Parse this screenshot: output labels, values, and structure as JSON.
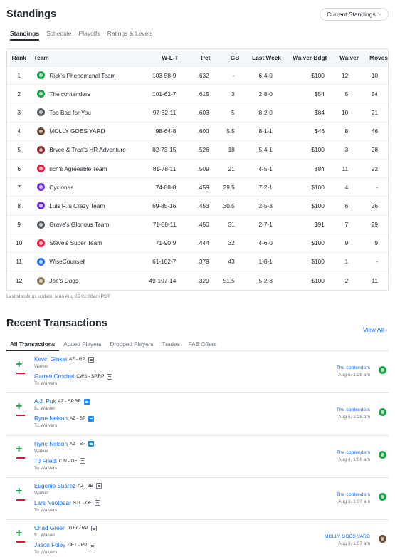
{
  "standings": {
    "title": "Standings",
    "season_button": "Current Standings",
    "subtabs": [
      "Standings",
      "Schedule",
      "Playoffs",
      "Ratings & Levels"
    ],
    "columns": [
      "Rank",
      "Team",
      "W-L-T",
      "Pct",
      "GB",
      "Last Week",
      "Waiver Bdgt",
      "Waiver",
      "Moves"
    ],
    "rows": [
      {
        "rank": "1",
        "team": "Rick's Phenomenal Team",
        "wlt": "103-58-9",
        "pct": ".632",
        "gb": "-",
        "last": "6-4-0",
        "bdgt": "$100",
        "waiver": "12",
        "moves": "10",
        "logo": "#1ea24b"
      },
      {
        "rank": "2",
        "team": "The contenders",
        "wlt": "101-62-7",
        "pct": ".615",
        "gb": "3",
        "last": "2-8-0",
        "bdgt": "$54",
        "waiver": "5",
        "moves": "54",
        "logo": "#1ea24b"
      },
      {
        "rank": "3",
        "team": "Too Bad for You",
        "wlt": "97-62-11",
        "pct": ".603",
        "gb": "5",
        "last": "8-2-0",
        "bdgt": "$84",
        "waiver": "10",
        "moves": "21",
        "logo": "#555b61"
      },
      {
        "rank": "4",
        "team": "MOLLY GOES YARD",
        "wlt": "98-64-8",
        "pct": ".600",
        "gb": "5.5",
        "last": "8-1-1",
        "bdgt": "$46",
        "waiver": "8",
        "moves": "46",
        "logo": "#6b4a33"
      },
      {
        "rank": "5",
        "team": "Bryce & Trea's HR Adventure",
        "wlt": "82-73-15",
        "pct": ".526",
        "gb": "18",
        "last": "5-4-1",
        "bdgt": "$100",
        "waiver": "3",
        "moves": "28",
        "logo": "#8c2b2b"
      },
      {
        "rank": "6",
        "team": "rich's Agreeable Team",
        "wlt": "81-78-11",
        "pct": ".509",
        "gb": "21",
        "last": "4-5-1",
        "bdgt": "$84",
        "waiver": "11",
        "moves": "22",
        "logo": "#e0244b"
      },
      {
        "rank": "7",
        "team": "Cyclones",
        "wlt": "74-88-8",
        "pct": ".459",
        "gb": "29.5",
        "last": "7-2-1",
        "bdgt": "$100",
        "waiver": "4",
        "moves": "-",
        "logo": "#6e34d6"
      },
      {
        "rank": "8",
        "team": "Luis R.'s Crazy Team",
        "wlt": "69-85-16",
        "pct": ".453",
        "gb": "30.5",
        "last": "2-5-3",
        "bdgt": "$100",
        "waiver": "6",
        "moves": "26",
        "logo": "#6e34d6"
      },
      {
        "rank": "9",
        "team": "Grave's Glorious Team",
        "wlt": "71-88-11",
        "pct": ".450",
        "gb": "31",
        "last": "2-7-1",
        "bdgt": "$91",
        "waiver": "7",
        "moves": "29",
        "logo": "#555b61"
      },
      {
        "rank": "10",
        "team": "Steve's Super Team",
        "wlt": "71-90-9",
        "pct": ".444",
        "gb": "32",
        "last": "4-6-0",
        "bdgt": "$100",
        "waiver": "9",
        "moves": "9",
        "logo": "#e0244b"
      },
      {
        "rank": "11",
        "team": "WiseCounsell",
        "wlt": "61-102-7",
        "pct": ".379",
        "gb": "43",
        "last": "1-8-1",
        "bdgt": "$100",
        "waiver": "1",
        "moves": "-",
        "logo": "#2a6fd6"
      },
      {
        "rank": "12",
        "team": "Joe's Dogs",
        "wlt": "49-107-14",
        "pct": ".329",
        "gb": "51.5",
        "last": "5-2-3",
        "bdgt": "$100",
        "waiver": "2",
        "moves": "11",
        "logo": "#8a7a55"
      }
    ],
    "updated": "Last standings update: Mon Aug 05 01:08am PDT"
  },
  "transactions": {
    "title": "Recent Transactions",
    "view_all": "View All",
    "tabs": [
      "All Transactions",
      "Added Players",
      "Dropped Players",
      "Trades",
      "FAB Offers"
    ],
    "items": [
      {
        "add_name": "Kevin Ginkel",
        "add_pos": "AZ - RP",
        "add_note_blue": false,
        "add_meta": "Waiver",
        "drop_name": "Garrett Crochet",
        "drop_pos": "CWS - SP,RP",
        "drop_note_blue": false,
        "drop_meta": "To Waivers",
        "team": "The contenders",
        "date": "Aug 5, 1:28 am",
        "logo": "#1ea24b"
      },
      {
        "add_name": "A.J. Puk",
        "add_pos": "AZ - SP,RP",
        "add_note_blue": true,
        "add_meta": "$1 Waiver",
        "drop_name": "Ryne Nelson",
        "drop_pos": "AZ - SP",
        "drop_note_blue": true,
        "drop_meta": "To Waivers",
        "team": "The contenders",
        "date": "Aug 5, 1:28 am",
        "logo": "#1ea24b"
      },
      {
        "add_name": "Ryne Nelson",
        "add_pos": "AZ - SP",
        "add_note_blue": true,
        "add_meta": "Waiver",
        "drop_name": "TJ Friedl",
        "drop_pos": "CIN - OF",
        "drop_note_blue": false,
        "drop_meta": "To Waivers",
        "team": "The contenders",
        "date": "Aug 4, 1:08 am",
        "logo": "#1ea24b"
      },
      {
        "add_name": "Eugenio Suárez",
        "add_pos": "AZ - 3B",
        "add_note_blue": false,
        "add_meta": "Waiver",
        "drop_name": "Lars Nootbaar",
        "drop_pos": "STL - OF",
        "drop_note_blue": false,
        "drop_meta": "To Waivers",
        "team": "The contenders",
        "date": "Aug 3, 1:07 am",
        "logo": "#1ea24b"
      },
      {
        "add_name": "Chad Green",
        "add_pos": "TOR - RP",
        "add_note_blue": false,
        "add_meta": "$1 Waiver",
        "drop_name": "Jason Foley",
        "drop_pos": "DET - RP",
        "drop_note_blue": false,
        "drop_meta": "To Waivers",
        "team": "MOLLY GOES YARD",
        "date": "Aug 3, 1:07 am",
        "logo": "#6b4a33"
      }
    ]
  }
}
